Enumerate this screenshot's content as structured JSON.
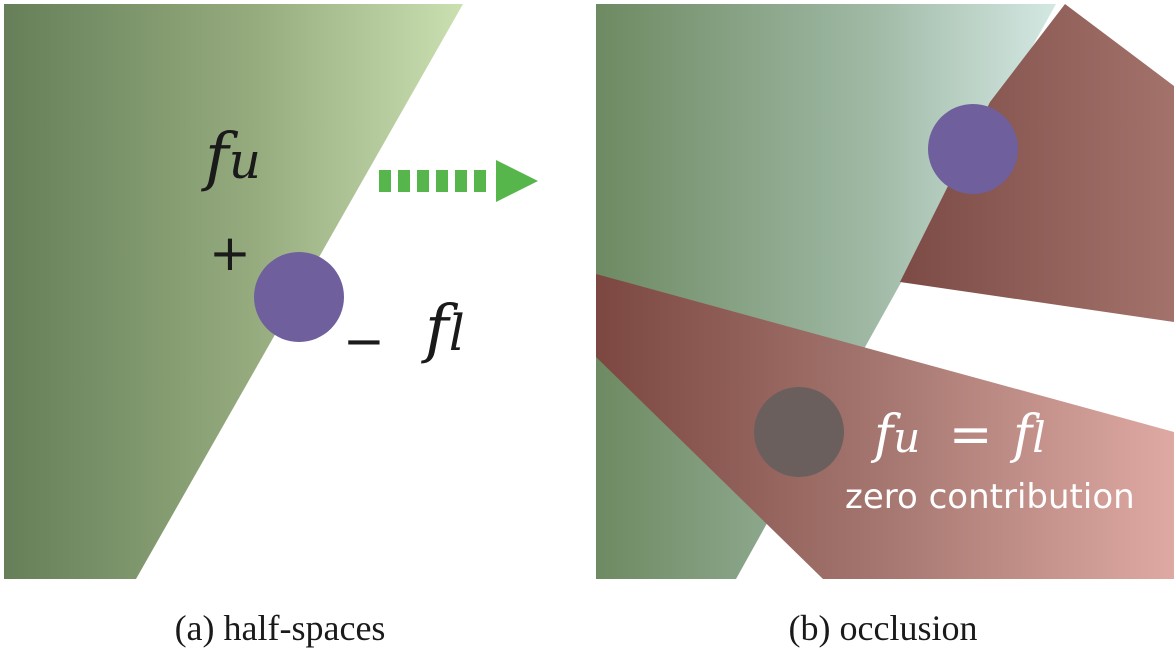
{
  "panel_a": {
    "caption": "(a) half-spaces",
    "label_upper": "fu",
    "label_lower": "fl",
    "plus_sign": "+",
    "minus_sign": "−"
  },
  "panel_b": {
    "caption": "(b) occlusion",
    "equation": "fu = fl",
    "note": "zero contribution"
  },
  "colors": {
    "green_dark": "#6e8a5e",
    "green_light": "#c8dcae",
    "green_b_light": "#cfe3df",
    "red_dark": "#7a4742",
    "red_light": "#dba7a1",
    "point": "#6f5f9d",
    "occluded_point": "#6a5f5d",
    "arrow": "#56b64c"
  },
  "icons": {
    "arrow": "dashed-right-arrow-icon"
  }
}
